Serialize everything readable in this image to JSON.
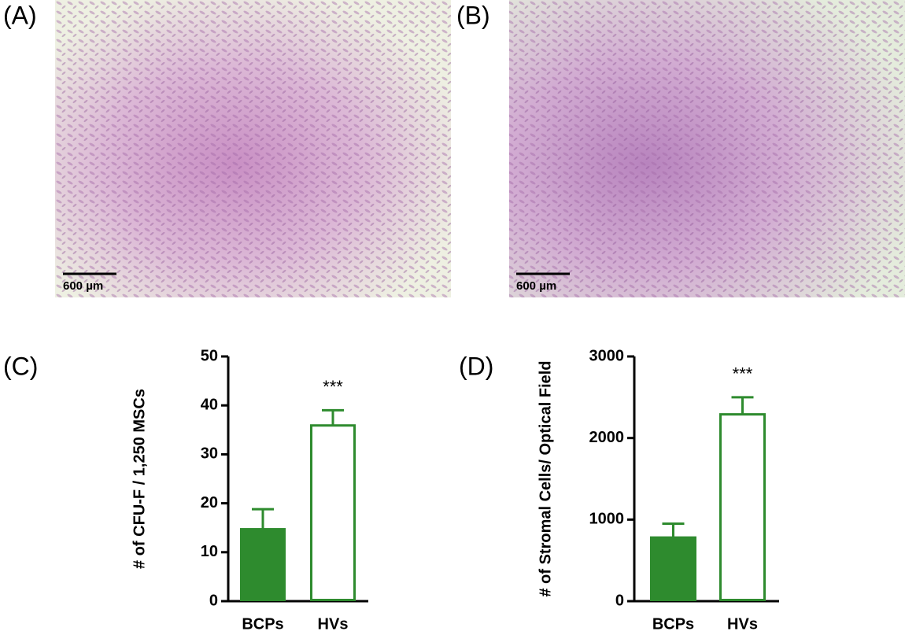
{
  "images": [
    {
      "label": "(A)",
      "scale_bar": "600 µm"
    },
    {
      "label": "(B)",
      "scale_bar": "600 µm"
    }
  ],
  "chart_data": [
    {
      "type": "bar",
      "label": "(C)",
      "ylabel": "# of CFU-F / 1,250 MSCs",
      "categories": [
        "BCPs",
        "HVs"
      ],
      "values": [
        14.7,
        35.9
      ],
      "errors": [
        4.1,
        3.1
      ],
      "annotations": [
        null,
        "***"
      ],
      "color": "#2e8b2e",
      "bar_fills": [
        "#2e8b2e",
        "#ffffff"
      ],
      "ylim": [
        0,
        50
      ],
      "yticks": [
        0,
        10,
        20,
        30,
        40,
        50
      ]
    },
    {
      "type": "bar",
      "label": "(D)",
      "ylabel": "# of Stromal Cells/ Optical Field",
      "categories": [
        "BCPs",
        "HVs"
      ],
      "values": [
        780,
        2290
      ],
      "errors": [
        170,
        210
      ],
      "annotations": [
        null,
        "***"
      ],
      "color": "#2e8b2e",
      "bar_fills": [
        "#2e8b2e",
        "#ffffff"
      ],
      "ylim": [
        0,
        3000
      ],
      "yticks": [
        0,
        1000,
        2000,
        3000
      ]
    }
  ]
}
